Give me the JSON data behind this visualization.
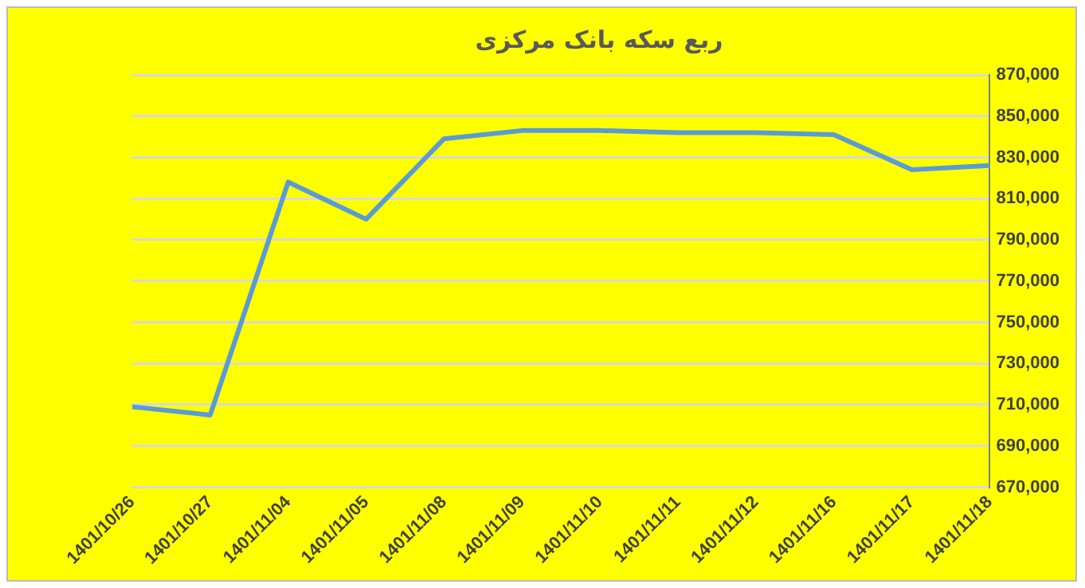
{
  "chart_data": {
    "type": "line",
    "title": "ربع سکه بانک مرکزی",
    "categories": [
      "1401/10/26",
      "1401/10/27",
      "1401/11/04",
      "1401/11/05",
      "1401/11/08",
      "1401/11/09",
      "1401/11/10",
      "1401/11/11",
      "1401/11/12",
      "1401/11/16",
      "1401/11/17",
      "1401/11/18"
    ],
    "series": [
      {
        "color": "#5b9bd5",
        "values": [
          709000,
          705000,
          818000,
          800000,
          839000,
          843000,
          843000,
          842000,
          842000,
          841000,
          824000,
          826000
        ]
      }
    ],
    "ylim": [
      670000,
      870000
    ],
    "yticks": [
      {
        "value": 670000,
        "label": "670,000"
      },
      {
        "value": 690000,
        "label": "690,000"
      },
      {
        "value": 710000,
        "label": "710,000"
      },
      {
        "value": 730000,
        "label": "730,000"
      },
      {
        "value": 750000,
        "label": "750,000"
      },
      {
        "value": 770000,
        "label": "770,000"
      },
      {
        "value": 790000,
        "label": "790,000"
      },
      {
        "value": 810000,
        "label": "810,000"
      },
      {
        "value": 830000,
        "label": "830,000"
      },
      {
        "value": 850000,
        "label": "850,000"
      },
      {
        "value": 870000,
        "label": "870,000"
      }
    ],
    "grid": "y",
    "legend": false,
    "marker": "none",
    "line_style": "solid"
  }
}
